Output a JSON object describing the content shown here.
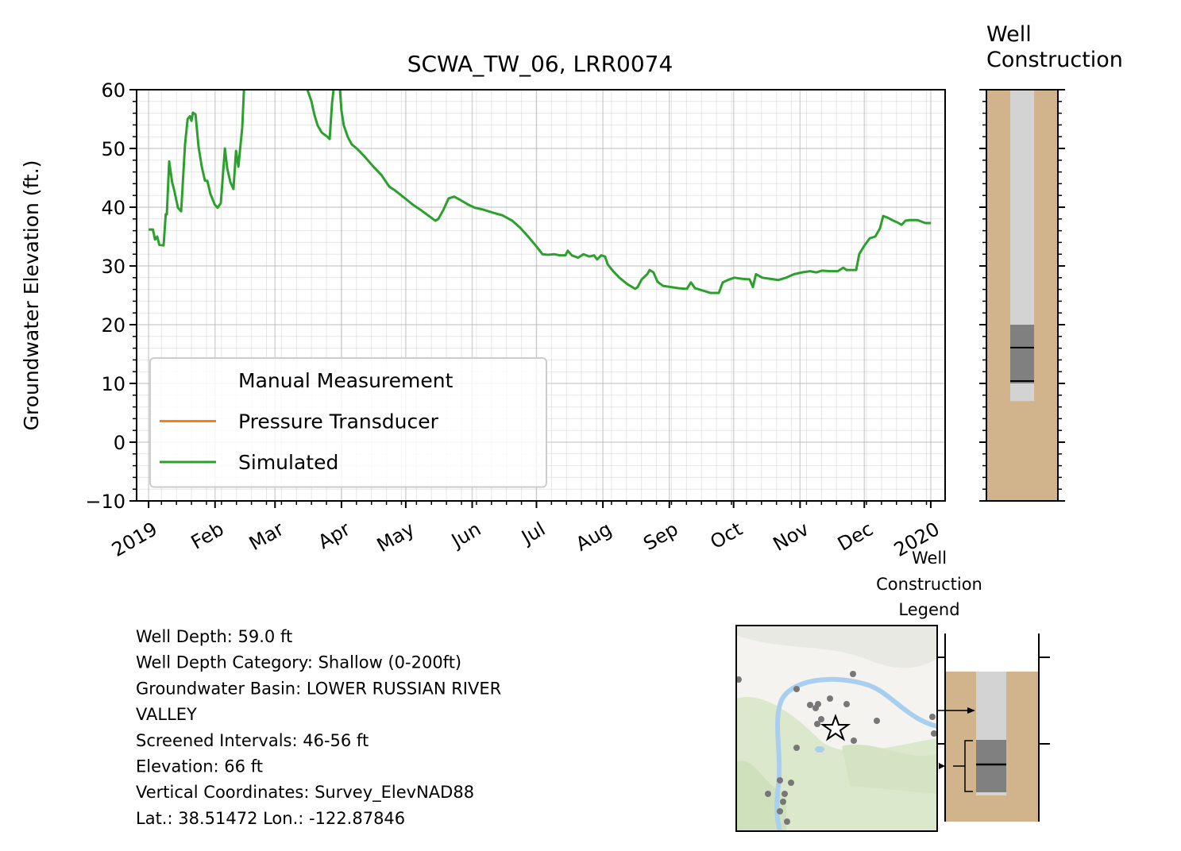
{
  "chart_data": [
    {
      "type": "line",
      "title": "SCWA_TW_06, LRR0074",
      "ylabel": "Groundwater Elevation (ft.)",
      "xlim": [
        -5.6,
        371.7
      ],
      "xticks": [
        {
          "value": 0,
          "label": "2019"
        },
        {
          "value": 31,
          "label": "Feb"
        },
        {
          "value": 59,
          "label": "Mar"
        },
        {
          "value": 90,
          "label": "Apr"
        },
        {
          "value": 120,
          "label": "May"
        },
        {
          "value": 151,
          "label": "Jun"
        },
        {
          "value": 181,
          "label": "Jul"
        },
        {
          "value": 212,
          "label": "Aug"
        },
        {
          "value": 243,
          "label": "Sep"
        },
        {
          "value": 273,
          "label": "Oct"
        },
        {
          "value": 304,
          "label": "Nov"
        },
        {
          "value": 334,
          "label": "Dec"
        },
        {
          "value": 365,
          "label": "2020"
        }
      ],
      "minor_xticks": [
        6,
        13,
        20,
        27,
        34,
        41,
        48,
        55,
        62,
        69,
        76,
        83,
        90,
        97,
        104,
        111,
        118,
        125,
        132,
        139,
        146,
        153,
        160,
        167,
        174,
        181,
        188,
        195,
        202,
        209,
        216,
        223,
        230,
        237,
        244,
        251,
        258,
        265,
        272,
        279,
        286,
        293,
        300,
        307,
        314,
        321,
        328,
        335,
        342,
        349,
        356,
        363
      ],
      "ylim": [
        -10,
        60
      ],
      "yticks": [
        {
          "value": -10,
          "label": "−10"
        },
        0,
        10,
        20,
        30,
        40,
        50,
        60
      ],
      "minor_yticks": [
        -8,
        -6,
        -4,
        -2,
        2,
        4,
        6,
        8,
        12,
        14,
        16,
        18,
        22,
        24,
        26,
        28,
        32,
        34,
        36,
        38,
        42,
        44,
        46,
        48,
        52,
        54,
        56,
        58
      ],
      "grid": true,
      "legend": "lower left",
      "series": [
        {
          "name": "Manual Measurement",
          "x": [],
          "values": []
        },
        {
          "name": "Pressure Transducer",
          "color": "#ff7f0e",
          "x": [],
          "values": []
        },
        {
          "name": "Simulated",
          "color": "#2ca02c",
          "x": [
            0,
            2,
            3,
            4,
            5,
            7,
            8,
            8.5,
            9.6,
            11,
            12,
            13.7,
            15.2,
            17,
            18.2,
            19.3,
            20,
            20.7,
            21.9,
            23.3,
            24.8,
            26.3,
            27.4,
            28.9,
            30.8,
            32.2,
            33.7,
            35.6,
            36.7,
            38.2,
            39.6,
            40.8,
            41.9,
            43,
            43.7,
            44.5,
            60,
            74.1,
            76,
            77.4,
            78.9,
            80.8,
            83.4,
            84.5,
            85.6,
            86.3,
            88,
            89.3,
            90,
            91.1,
            93,
            94.8,
            97.4,
            101.1,
            104.9,
            108.6,
            112.3,
            115.2,
            119.7,
            123.4,
            127.1,
            130.8,
            133.8,
            135.2,
            137.5,
            140,
            142.6,
            145.6,
            149.3,
            152.3,
            156,
            160.4,
            165.2,
            169.7,
            173.4,
            177.1,
            180.8,
            183.8,
            186.4,
            189.3,
            191.9,
            194.5,
            195.6,
            197.5,
            200.4,
            203,
            205.6,
            207.9,
            209.3,
            211.2,
            213,
            214.2,
            216.8,
            219.7,
            223.4,
            227.1,
            228.2,
            230.1,
            232.7,
            233.8,
            235.6,
            237.5,
            240.1,
            243.8,
            247.5,
            251.2,
            253.1,
            255,
            258.7,
            262.3,
            266.1,
            267.9,
            270.9,
            273.4,
            277.1,
            280.5,
            282,
            283.4,
            286.4,
            290.1,
            293.8,
            297.5,
            301.2,
            304.9,
            308.6,
            311.6,
            314.2,
            317.9,
            321.6,
            324.2,
            325.7,
            327.9,
            330.2,
            331.6,
            333.9,
            336.5,
            339.1,
            341.3,
            342.8,
            345,
            347.6,
            349.5,
            351.4,
            353.2,
            355.1,
            358.8,
            362.5,
            365.1
          ],
          "values": [
            36.2,
            36.2,
            34.5,
            35,
            33.6,
            33.5,
            38.8,
            38.8,
            47.8,
            44.2,
            42.8,
            39.9,
            39.3,
            50.7,
            55,
            55.5,
            54.7,
            56.1,
            55.8,
            50.3,
            46.9,
            44.5,
            44.5,
            42.2,
            40.5,
            39.9,
            40.7,
            50,
            46.6,
            44.2,
            43.1,
            49.6,
            46.9,
            51,
            53.6,
            60,
            null,
            60,
            58,
            55.7,
            53.9,
            52.7,
            52,
            51.6,
            57.7,
            60,
            null,
            60,
            56.4,
            53.9,
            51.9,
            50.7,
            49.9,
            48.5,
            46.9,
            45.5,
            43.5,
            42.8,
            41.5,
            40.4,
            39.5,
            38.5,
            37.7,
            38,
            39.5,
            41.5,
            41.8,
            41.2,
            40.4,
            39.9,
            39.6,
            39.1,
            38.6,
            37.7,
            36.5,
            35,
            33.4,
            32,
            31.9,
            32,
            31.8,
            31.8,
            32.6,
            31.8,
            31.4,
            32,
            31.6,
            31.8,
            31.1,
            31.8,
            31.6,
            30.3,
            29.1,
            28,
            26.9,
            26.1,
            26.4,
            27.7,
            28.6,
            29.3,
            28.9,
            27.3,
            26.6,
            26.4,
            26.2,
            26.1,
            27.2,
            26.2,
            25.8,
            25.4,
            25.4,
            27.2,
            27.7,
            28,
            27.8,
            27.7,
            26.4,
            28.6,
            28,
            27.8,
            27.6,
            28,
            28.6,
            28.9,
            29.1,
            28.9,
            29.2,
            29.1,
            29.1,
            29.7,
            29.3,
            29.3,
            29.3,
            32,
            33.4,
            34.7,
            35,
            36.4,
            38.5,
            38.2,
            37.7,
            37.4,
            37,
            37.7,
            37.8,
            37.8,
            37.3,
            37.3
          ]
        }
      ]
    },
    {
      "type": "well",
      "title": [
        "Well",
        "Construction"
      ],
      "ylim": [
        -10,
        60
      ],
      "yticks": [
        -10,
        0,
        10,
        20,
        30,
        40,
        50,
        60
      ],
      "minor_yticks": [
        -8,
        -6,
        -4,
        -2,
        2,
        4,
        6,
        8,
        12,
        14,
        16,
        18,
        22,
        24,
        26,
        28,
        32,
        34,
        36,
        38,
        42,
        44,
        46,
        48,
        52,
        54,
        56,
        58
      ],
      "casing": [
        7,
        66
      ],
      "screen": [
        10,
        20
      ],
      "levels": [
        16.1,
        10.4
      ],
      "colors": {
        "ground": "#d2b48c",
        "casing": "#d3d3d3",
        "screen": "#808080",
        "level": "#000000"
      }
    }
  ],
  "well_legend": {
    "title": [
      "Well",
      "Construction",
      "Legend"
    ]
  },
  "info": {
    "lines": [
      "Well Depth: 59.0 ft",
      "Well Depth Category: Shallow (0-200ft)",
      "Groundwater Basin: LOWER RUSSIAN RIVER",
      "VALLEY",
      "Screened Intervals: 46-56 ft",
      "Elevation: 66 ft",
      "Vertical Coordinates: Survey_ElevNAD88",
      "Lat.: 38.51472 Lon.: -122.87846"
    ]
  }
}
